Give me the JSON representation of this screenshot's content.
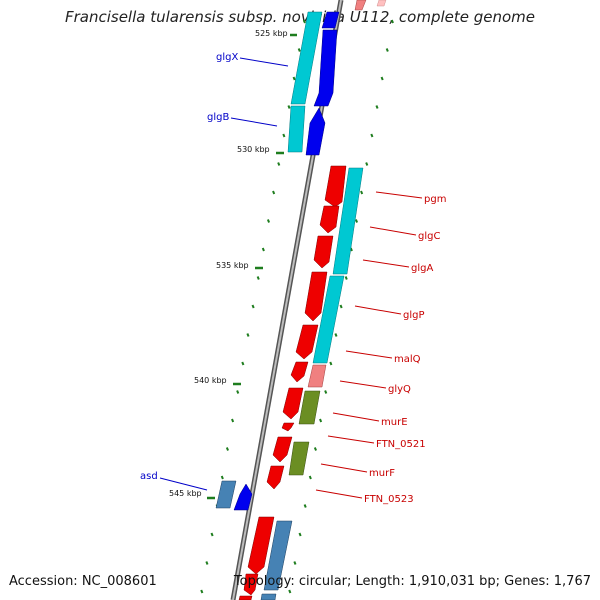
{
  "title": "Francisella tularensis subsp. novicida U112, complete genome",
  "footer": {
    "accession": "Accession: NC_008601",
    "topology": "Topology: circular; Length: 1,910,031 bp; Genes: 1,767"
  },
  "colors": {
    "backbone": "#8a8a8a",
    "forward_cds": "#0000ee",
    "reverse_cds": "#ee0000",
    "cyan_cds": "#00c8d2",
    "pink_cds": "#f08080",
    "olive_cds": "#6b8e23",
    "steel_cds": "#4682b4",
    "tick": "#1e7d1e",
    "forward_label": "#0000c8",
    "reverse_label": "#c80000"
  },
  "scale": {
    "labels": [
      {
        "text": "525 kbp",
        "kbp": 525
      },
      {
        "text": "530 kbp",
        "kbp": 530
      },
      {
        "text": "535 kbp",
        "kbp": 535
      },
      {
        "text": "540 kbp",
        "kbp": 540
      },
      {
        "text": "545 kbp",
        "kbp": 545
      }
    ]
  },
  "genes": [
    {
      "name": "glgX",
      "strand": "forward",
      "side": "left"
    },
    {
      "name": "glgB",
      "strand": "forward",
      "side": "left"
    },
    {
      "name": "pgm",
      "strand": "reverse",
      "side": "right"
    },
    {
      "name": "glgC",
      "strand": "reverse",
      "side": "right"
    },
    {
      "name": "glgA",
      "strand": "reverse",
      "side": "right"
    },
    {
      "name": "glgP",
      "strand": "reverse",
      "side": "right"
    },
    {
      "name": "malQ",
      "strand": "reverse",
      "side": "right"
    },
    {
      "name": "glyQ",
      "strand": "reverse",
      "side": "right"
    },
    {
      "name": "murE",
      "strand": "reverse",
      "side": "right"
    },
    {
      "name": "FTN_0521",
      "strand": "reverse",
      "side": "right"
    },
    {
      "name": "murF",
      "strand": "reverse",
      "side": "right"
    },
    {
      "name": "FTN_0523",
      "strand": "reverse",
      "side": "right"
    },
    {
      "name": "asd",
      "strand": "forward",
      "side": "left"
    }
  ]
}
